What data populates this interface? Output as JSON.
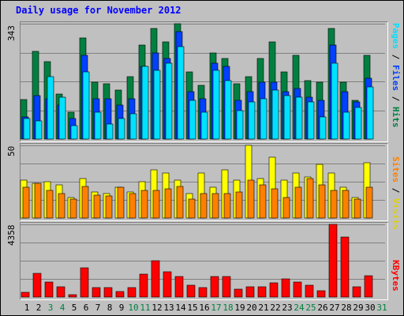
{
  "title": "Daily usage for November 2012",
  "legend": {
    "top": {
      "pages": "Pages",
      "files": "Files",
      "hits": "Hits",
      "sep": " / "
    },
    "middle": {
      "sites": "Sites",
      "visits": "Visits",
      "sep": " / "
    },
    "bottom": {
      "kbytes": "KBytes"
    }
  },
  "colors": {
    "hits": "#008040",
    "files": "#0040ff",
    "pages": "#00e0ff",
    "visits": "#ffff00",
    "sites": "#ff8000",
    "kbytes": "#ff0000",
    "weekday_label": "#000000",
    "weekend_label": "#008040"
  },
  "chart_data": [
    {
      "type": "bar",
      "title": "Daily usage for November 2012",
      "ymax_label": "343",
      "ylim": [
        0,
        343
      ],
      "categories": [
        "1",
        "2",
        "3",
        "4",
        "5",
        "6",
        "7",
        "8",
        "9",
        "10",
        "11",
        "12",
        "13",
        "14",
        "15",
        "16",
        "17",
        "18",
        "19",
        "20",
        "21",
        "22",
        "23",
        "24",
        "25",
        "26",
        "27",
        "28",
        "29",
        "30",
        "31"
      ],
      "weekend_days": [
        "3",
        "4",
        "10",
        "11",
        "17",
        "18",
        "24",
        "25",
        "31"
      ],
      "series": [
        {
          "name": "Hits",
          "values": [
            118,
            260,
            230,
            135,
            80,
            300,
            170,
            165,
            145,
            185,
            280,
            330,
            290,
            343,
            200,
            160,
            255,
            240,
            165,
            185,
            240,
            290,
            200,
            250,
            175,
            170,
            330,
            170,
            115,
            250,
            0
          ]
        },
        {
          "name": "Files",
          "values": [
            65,
            130,
            120,
            100,
            60,
            250,
            120,
            120,
            100,
            120,
            215,
            255,
            240,
            320,
            140,
            120,
            225,
            215,
            115,
            140,
            170,
            170,
            140,
            150,
            125,
            115,
            280,
            140,
            110,
            180,
            0
          ]
        },
        {
          "name": "Pages",
          "values": [
            60,
            55,
            185,
            125,
            40,
            200,
            80,
            45,
            60,
            75,
            215,
            205,
            225,
            275,
            115,
            80,
            205,
            175,
            85,
            110,
            120,
            145,
            130,
            125,
            110,
            65,
            225,
            80,
            95,
            155,
            0
          ]
        }
      ]
    },
    {
      "type": "bar",
      "ymax_label": "50",
      "ylim": [
        0,
        50
      ],
      "categories": [
        "1",
        "2",
        "3",
        "4",
        "5",
        "6",
        "7",
        "8",
        "9",
        "10",
        "11",
        "12",
        "13",
        "14",
        "15",
        "16",
        "17",
        "18",
        "19",
        "20",
        "21",
        "22",
        "23",
        "24",
        "25",
        "26",
        "27",
        "28",
        "29",
        "30",
        "31"
      ],
      "series": [
        {
          "name": "Visits",
          "values": [
            26,
            24,
            25,
            23,
            14,
            27,
            18,
            17,
            21,
            18,
            25,
            33,
            31,
            26,
            17,
            31,
            21,
            33,
            26,
            50,
            27,
            42,
            26,
            31,
            28,
            37,
            31,
            21,
            14,
            38,
            0
          ]
        },
        {
          "name": "Sites",
          "values": [
            21,
            24,
            19,
            17,
            13,
            22,
            16,
            15,
            21,
            17,
            19,
            19,
            20,
            22,
            13,
            17,
            17,
            17,
            18,
            26,
            23,
            20,
            14,
            21,
            27,
            23,
            19,
            19,
            13,
            21,
            0
          ]
        }
      ]
    },
    {
      "type": "bar",
      "ymax_label": "4358",
      "ylim": [
        0,
        4358
      ],
      "categories": [
        "1",
        "2",
        "3",
        "4",
        "5",
        "6",
        "7",
        "8",
        "9",
        "10",
        "11",
        "12",
        "13",
        "14",
        "15",
        "16",
        "17",
        "18",
        "19",
        "20",
        "21",
        "22",
        "23",
        "24",
        "25",
        "26",
        "27",
        "28",
        "29",
        "30",
        "31"
      ],
      "series": [
        {
          "name": "KBytes",
          "values": [
            300,
            1400,
            920,
            610,
            160,
            1750,
            560,
            560,
            340,
            560,
            1390,
            2170,
            1500,
            1250,
            700,
            560,
            1250,
            1250,
            480,
            610,
            610,
            860,
            1090,
            890,
            690,
            390,
            4358,
            3600,
            610,
            1300,
            0
          ]
        }
      ]
    }
  ]
}
